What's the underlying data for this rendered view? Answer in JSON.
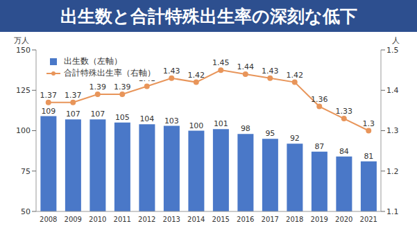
{
  "chart_data": {
    "type": "bar",
    "title": "出生数と合計特殊出生率の深刻な低下",
    "y_label": "万人",
    "y2_label": "人",
    "categories": [
      "2008",
      "2009",
      "2010",
      "2011",
      "2012",
      "2013",
      "2014",
      "2015",
      "2016",
      "2017",
      "2018",
      "2019",
      "2020",
      "2021"
    ],
    "series": [
      {
        "name": "出生数（左軸）",
        "type": "bar",
        "color": "#4a78c8",
        "values": [
          109,
          107,
          107,
          105,
          104,
          103,
          100,
          101,
          98,
          95,
          92,
          87,
          84,
          81
        ]
      },
      {
        "name": "合計特殊出生率（右軸）",
        "type": "line",
        "axis": "y2",
        "color": "#e8955a",
        "marker": "circle",
        "values": [
          1.37,
          1.37,
          1.39,
          1.39,
          1.41,
          1.43,
          1.42,
          1.45,
          1.44,
          1.43,
          1.42,
          1.36,
          1.33,
          1.3
        ]
      }
    ],
    "ylim": [
      50,
      150
    ],
    "yticks": [
      50,
      75,
      100,
      125,
      150
    ],
    "y2lim": [
      1.1,
      1.5
    ],
    "y2ticks": [
      1.1,
      1.2,
      1.3,
      1.4,
      1.5
    ],
    "data_labels": true,
    "legend": "upper left",
    "grid": false
  }
}
